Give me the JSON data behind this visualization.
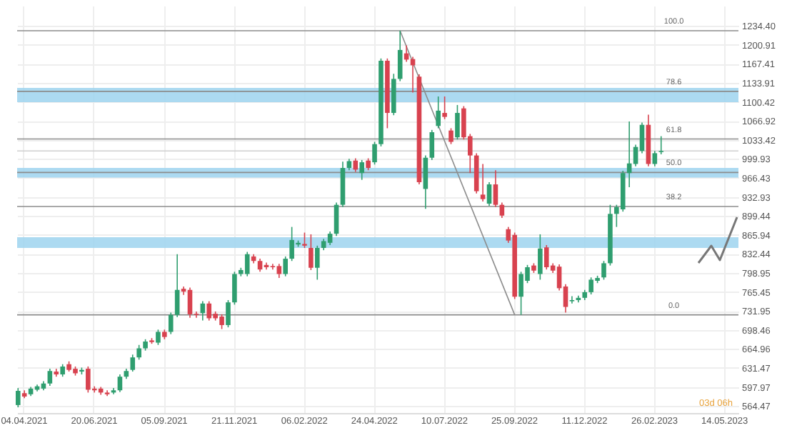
{
  "chart_data": {
    "type": "candlestick",
    "x": [
      "2021-03-29",
      "2021-04-05",
      "2021-04-12",
      "2021-04-19",
      "2021-04-26",
      "2021-05-03",
      "2021-05-10",
      "2021-05-17",
      "2021-05-24",
      "2021-05-31",
      "2021-06-07",
      "2021-06-14",
      "2021-06-21",
      "2021-06-28",
      "2021-07-05",
      "2021-07-12",
      "2021-07-19",
      "2021-07-26",
      "2021-08-02",
      "2021-08-09",
      "2021-08-16",
      "2021-08-23",
      "2021-08-30",
      "2021-09-06",
      "2021-09-13",
      "2021-09-20",
      "2021-09-27",
      "2021-10-04",
      "2021-10-11",
      "2021-10-18",
      "2021-10-25",
      "2021-11-01",
      "2021-11-08",
      "2021-11-15",
      "2021-11-22",
      "2021-11-29",
      "2021-12-06",
      "2021-12-13",
      "2021-12-20",
      "2021-12-27",
      "2022-01-03",
      "2022-01-10",
      "2022-01-17",
      "2022-01-24",
      "2022-01-31",
      "2022-02-07",
      "2022-02-14",
      "2022-02-21",
      "2022-02-28",
      "2022-03-07",
      "2022-03-14",
      "2022-03-21",
      "2022-03-28",
      "2022-04-04",
      "2022-04-11",
      "2022-04-18",
      "2022-04-25",
      "2022-05-02",
      "2022-05-09",
      "2022-05-16",
      "2022-05-23",
      "2022-05-30",
      "2022-06-06",
      "2022-06-13",
      "2022-06-20",
      "2022-06-27",
      "2022-07-04",
      "2022-07-11",
      "2022-07-18",
      "2022-07-25",
      "2022-08-01",
      "2022-08-08",
      "2022-08-15",
      "2022-08-22",
      "2022-08-29",
      "2022-09-05",
      "2022-09-12",
      "2022-09-19",
      "2022-09-26",
      "2022-10-03",
      "2022-10-10",
      "2022-10-17",
      "2022-10-24",
      "2022-10-31",
      "2022-11-07",
      "2022-11-14",
      "2022-11-21",
      "2022-11-28",
      "2022-12-05",
      "2022-12-12",
      "2022-12-19",
      "2022-12-26",
      "2023-01-02",
      "2023-01-09",
      "2023-01-16",
      "2023-01-23",
      "2023-01-30",
      "2023-02-06",
      "2023-02-13",
      "2023-02-20",
      "2023-02-27",
      "2023-03-06"
    ],
    "ohlc": [
      [
        566,
        596,
        562,
        591
      ],
      [
        587,
        592,
        578,
        581
      ],
      [
        585,
        598,
        582,
        595
      ],
      [
        593,
        602,
        590,
        599
      ],
      [
        595,
        608,
        592,
        604
      ],
      [
        604,
        630,
        600,
        626
      ],
      [
        625,
        630,
        616,
        620
      ],
      [
        620,
        638,
        616,
        634
      ],
      [
        638,
        643,
        625,
        628
      ],
      [
        630,
        634,
        618,
        622
      ],
      [
        625,
        632,
        620,
        628
      ],
      [
        630,
        634,
        588,
        593
      ],
      [
        595,
        599,
        588,
        592
      ],
      [
        595,
        598,
        584,
        588
      ],
      [
        588,
        592,
        582,
        585
      ],
      [
        588,
        596,
        585,
        592
      ],
      [
        592,
        620,
        589,
        616
      ],
      [
        616,
        630,
        612,
        626
      ],
      [
        628,
        655,
        625,
        650
      ],
      [
        650,
        672,
        646,
        666
      ],
      [
        666,
        682,
        662,
        678
      ],
      [
        680,
        684,
        674,
        677
      ],
      [
        676,
        699,
        672,
        695
      ],
      [
        695,
        699,
        682,
        686
      ],
      [
        695,
        729,
        691,
        725
      ],
      [
        725,
        832,
        721,
        769
      ],
      [
        771,
        775,
        760,
        766
      ],
      [
        769,
        773,
        720,
        726
      ],
      [
        727,
        731,
        720,
        725
      ],
      [
        728,
        749,
        715,
        745
      ],
      [
        745,
        749,
        715,
        719
      ],
      [
        727,
        731,
        715,
        719
      ],
      [
        722,
        726,
        700,
        707
      ],
      [
        707,
        751,
        703,
        747
      ],
      [
        747,
        801,
        743,
        797
      ],
      [
        797,
        808,
        793,
        804
      ],
      [
        797,
        836,
        793,
        832
      ],
      [
        828,
        832,
        816,
        820
      ],
      [
        820,
        824,
        801,
        805
      ],
      [
        813,
        817,
        805,
        809
      ],
      [
        811,
        815,
        805,
        809
      ],
      [
        811,
        815,
        790,
        797
      ],
      [
        797,
        828,
        793,
        824
      ],
      [
        824,
        880,
        820,
        857
      ],
      [
        849,
        856,
        845,
        852
      ],
      [
        850,
        870,
        843,
        847
      ],
      [
        843,
        867,
        804,
        808
      ],
      [
        808,
        847,
        787,
        843
      ],
      [
        843,
        859,
        839,
        855
      ],
      [
        852,
        872,
        848,
        868
      ],
      [
        868,
        923,
        864,
        919
      ],
      [
        919,
        995,
        915,
        984
      ],
      [
        984,
        1000,
        980,
        996
      ],
      [
        997,
        1001,
        977,
        981
      ],
      [
        975,
        998,
        963,
        994
      ],
      [
        997,
        1001,
        980,
        984
      ],
      [
        994,
        1030,
        990,
        1026
      ],
      [
        1026,
        1177,
        1022,
        1173
      ],
      [
        1173,
        1177,
        1054,
        1081
      ],
      [
        1081,
        1150,
        1077,
        1141
      ],
      [
        1141,
        1226,
        1137,
        1192
      ],
      [
        1186,
        1200,
        1171,
        1175
      ],
      [
        1176,
        1180,
        1117,
        1165
      ],
      [
        1145,
        1149,
        955,
        959
      ],
      [
        947,
        1006,
        912,
        1002
      ],
      [
        1002,
        1051,
        998,
        1047
      ],
      [
        1058,
        1110,
        1054,
        1085
      ],
      [
        1081,
        1110,
        1070,
        1074
      ],
      [
        1050,
        1054,
        1026,
        1030
      ],
      [
        1038,
        1095,
        1034,
        1081
      ],
      [
        1089,
        1093,
        1034,
        1038
      ],
      [
        1040,
        1044,
        975,
        1006
      ],
      [
        1006,
        1010,
        939,
        943
      ],
      [
        937,
        991,
        925,
        929
      ],
      [
        921,
        959,
        917,
        955
      ],
      [
        955,
        980,
        915,
        919
      ],
      [
        919,
        923,
        896,
        900
      ],
      [
        876,
        880,
        852,
        856
      ],
      [
        866,
        870,
        753,
        757
      ],
      [
        757,
        801,
        725,
        797
      ],
      [
        785,
        813,
        781,
        809
      ],
      [
        812,
        816,
        799,
        803
      ],
      [
        797,
        867,
        787,
        842
      ],
      [
        844,
        848,
        805,
        809
      ],
      [
        812,
        816,
        799,
        803
      ],
      [
        810,
        814,
        768,
        772
      ],
      [
        775,
        779,
        729,
        739
      ],
      [
        749,
        758,
        745,
        751
      ],
      [
        751,
        759,
        747,
        755
      ],
      [
        755,
        769,
        751,
        765
      ],
      [
        765,
        791,
        761,
        787
      ],
      [
        785,
        794,
        781,
        790
      ],
      [
        791,
        820,
        787,
        816
      ],
      [
        816,
        919,
        812,
        903
      ],
      [
        903,
        919,
        880,
        915
      ],
      [
        911,
        979,
        907,
        975
      ],
      [
        975,
        1066,
        950,
        992
      ],
      [
        991,
        1025,
        987,
        1021
      ],
      [
        1014,
        1064,
        1010,
        1060
      ],
      [
        1060,
        1078,
        987,
        991
      ],
      [
        991,
        1014,
        987,
        1010
      ],
      [
        1012,
        1040,
        1008,
        1014
      ]
    ],
    "colors": [
      "#2f9e6f",
      "#d8424f",
      "#2f9e6f",
      "#2f9e6f",
      "#2f9e6f",
      "#2f9e6f",
      "#d8424f",
      "#2f9e6f",
      "#d8424f",
      "#d8424f",
      "#2f9e6f",
      "#d8424f",
      "#d8424f",
      "#d8424f",
      "#d8424f",
      "#2f9e6f",
      "#2f9e6f",
      "#2f9e6f",
      "#2f9e6f",
      "#2f9e6f",
      "#2f9e6f",
      "#d8424f",
      "#2f9e6f",
      "#d8424f",
      "#2f9e6f",
      "#2f9e6f",
      "#d8424f",
      "#d8424f",
      "#d8424f",
      "#2f9e6f",
      "#d8424f",
      "#d8424f",
      "#d8424f",
      "#2f9e6f",
      "#2f9e6f",
      "#2f9e6f",
      "#2f9e6f",
      "#d8424f",
      "#d8424f",
      "#d8424f",
      "#d8424f",
      "#d8424f",
      "#2f9e6f",
      "#2f9e6f",
      "#2f9e6f",
      "#d8424f",
      "#d8424f",
      "#2f9e6f",
      "#2f9e6f",
      "#2f9e6f",
      "#2f9e6f",
      "#2f9e6f",
      "#2f9e6f",
      "#d8424f",
      "#2f9e6f",
      "#d8424f",
      "#2f9e6f",
      "#2f9e6f",
      "#d8424f",
      "#2f9e6f",
      "#2f9e6f",
      "#d8424f",
      "#d8424f",
      "#d8424f",
      "#2f9e6f",
      "#2f9e6f",
      "#2f9e6f",
      "#d8424f",
      "#d8424f",
      "#2f9e6f",
      "#d8424f",
      "#d8424f",
      "#d8424f",
      "#d8424f",
      "#2f9e6f",
      "#d8424f",
      "#d8424f",
      "#d8424f",
      "#d8424f",
      "#2f9e6f",
      "#2f9e6f",
      "#d8424f",
      "#2f9e6f",
      "#d8424f",
      "#d8424f",
      "#d8424f",
      "#d8424f",
      "#2f9e6f",
      "#2f9e6f",
      "#2f9e6f",
      "#2f9e6f",
      "#2f9e6f",
      "#2f9e6f",
      "#2f9e6f",
      "#2f9e6f",
      "#2f9e6f",
      "#2f9e6f",
      "#2f9e6f",
      "#2f9e6f",
      "#d8424f",
      "#2f9e6f",
      "#2f9e6f"
    ],
    "series": [
      {
        "type": "line",
        "x": [
          "2022-05-23",
          "2022-09-26"
        ],
        "values": [
          1226,
          725
        ],
        "color": "#8c8c8c"
      }
    ],
    "xlim": [
      "2021-03-28",
      "2023-05-30"
    ],
    "xticks": [
      {
        "value": "2021-04-04",
        "label": "04.04.2021"
      },
      {
        "value": "2021-06-20",
        "label": "20.06.2021"
      },
      {
        "value": "2021-09-05",
        "label": "05.09.2021"
      },
      {
        "value": "2021-11-21",
        "label": "21.11.2021"
      },
      {
        "value": "2022-02-06",
        "label": "06.02.2022"
      },
      {
        "value": "2022-04-24",
        "label": "24.04.2022"
      },
      {
        "value": "2022-07-10",
        "label": "10.07.2022"
      },
      {
        "value": "2022-09-25",
        "label": "25.09.2022"
      },
      {
        "value": "2022-12-11",
        "label": "11.12.2022"
      },
      {
        "value": "2023-02-26",
        "label": "26.02.2023"
      },
      {
        "value": "2023-05-14",
        "label": "14.05.2023"
      }
    ],
    "ylim": [
      552,
      1270
    ],
    "yticks": [
      564.47,
      597.97,
      631.47,
      664.96,
      698.46,
      731.95,
      765.45,
      798.95,
      832.44,
      865.94,
      899.44,
      932.93,
      966.43,
      999.93,
      1033.42,
      1066.92,
      1100.42,
      1133.91,
      1167.41,
      1200.91,
      {
        "value": 1234.4,
        "label": "1234.40"
      }
    ],
    "ref_lines": [
      {
        "axis": "y",
        "value": 1226,
        "color": "#8c8c8c"
      },
      {
        "axis": "y",
        "value": 1119,
        "color": "#8c8c8c"
      },
      {
        "axis": "y",
        "value": 1035,
        "color": "#8c8c8c"
      },
      {
        "axis": "y",
        "value": 976,
        "color": "#8c8c8c"
      },
      {
        "axis": "y",
        "value": 916,
        "color": "#8c8c8c"
      },
      {
        "axis": "y",
        "value": 725,
        "color": "#8c8c8c"
      },
      {
        "axis": "y",
        "value": 1014,
        "color": "#cfcfcf"
      }
    ],
    "bands": [
      {
        "axis": "y",
        "from": 1100,
        "to": 1125,
        "color": "#9dd4ee"
      },
      {
        "axis": "y",
        "from": 967,
        "to": 984,
        "color": "#9dd4ee"
      },
      {
        "axis": "y",
        "from": 843,
        "to": 862,
        "color": "#9dd4ee"
      }
    ],
    "annotations": [
      "03d 06h",
      {
        "text": "100.0",
        "x": "2023-03-20",
        "y": 1226
      },
      {
        "text": "78.6",
        "x": "2023-03-20",
        "y": 1119
      },
      {
        "text": "61.8",
        "x": "2023-03-20",
        "y": 1035
      },
      {
        "text": "50.0",
        "x": "2023-03-20",
        "y": 976
      },
      {
        "text": "38.2",
        "x": "2023-03-20",
        "y": 916
      },
      {
        "text": "0.0",
        "x": "2023-03-20",
        "y": 725
      }
    ],
    "grid": true
  }
}
